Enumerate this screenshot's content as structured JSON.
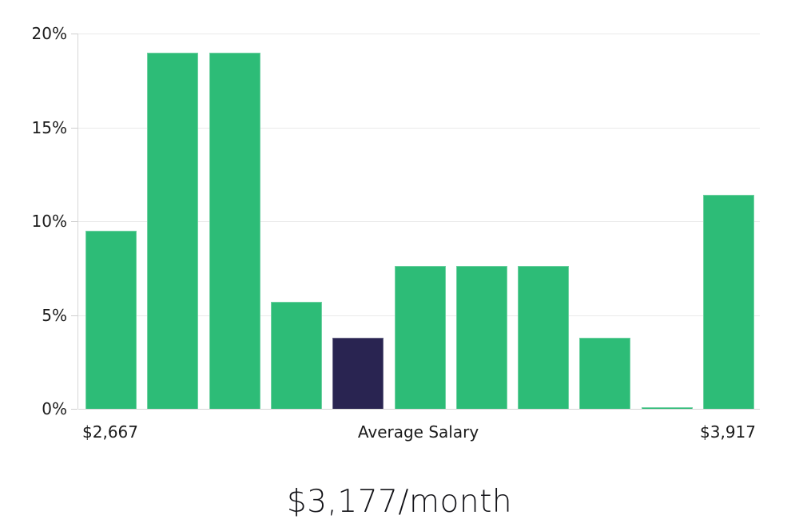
{
  "chart_data": {
    "type": "bar",
    "title": "$3,177/month",
    "description": "Salary distribution histogram",
    "ylim": [
      0,
      20
    ],
    "ytick_values": [
      0,
      5,
      10,
      15,
      20
    ],
    "ytick_labels": [
      "0%",
      "5%",
      "10%",
      "15%",
      "20%"
    ],
    "values": [
      9.5,
      19,
      19,
      5.7,
      3.8,
      7.6,
      7.6,
      7.6,
      3.8,
      0.1,
      11.4
    ],
    "highlighted_bar_index": 4,
    "bar_color": "#2dbc77",
    "highlight_color": "#292451",
    "grid": true,
    "legend_position": "none",
    "x_axis_annotations": [
      {
        "label": "$2,667",
        "position": "left"
      },
      {
        "label": "Average Salary",
        "position": "center"
      },
      {
        "label": "$3,917",
        "position": "right"
      }
    ]
  }
}
